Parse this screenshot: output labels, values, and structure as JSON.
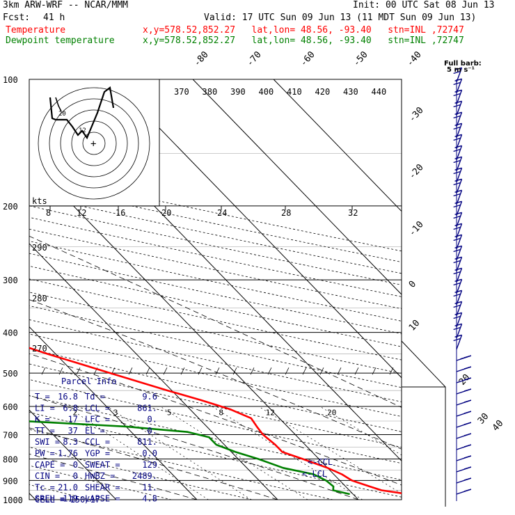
{
  "header": {
    "title": "3km ARW-WRF -- NCAR/MMM",
    "init": "Init: 00 UTC Sat 08 Jun 13",
    "fcst_label": "Fcst:",
    "fcst_value": "41 h",
    "valid": "Valid: 17 UTC Sun 09 Jun 13 (11 MDT Sun 09 Jun 13)",
    "temp_label": "Temperature",
    "dew_label": "Dewpoint temperature",
    "temp_info": "x,y=578.52,852.27   lat,lon= 48.56, -93.40   stn=INL ,72747",
    "dew_info": "x,y=578.52,852.27   lat,lon= 48.56, -93.40   stn=INL ,72747"
  },
  "colors": {
    "temperature": "#ff0000",
    "dewpoint": "#008000",
    "parcel_text": "#000080",
    "barbs": "#000080",
    "hodograph": "#000000"
  },
  "wind": {
    "title": "Full barb:",
    "unit": "5 m s⁻¹"
  },
  "hodo": {
    "kts_label": "kts",
    "speed_ticks": [
      "8",
      "12",
      "16",
      "20",
      "24",
      "28",
      "32"
    ],
    "ring_labels": [
      "12",
      "20"
    ]
  },
  "parcel": {
    "title": "Parcel Info",
    "rows": [
      {
        "l1": "T",
        "v1": "16.8",
        "l2": "Td",
        "v2": "9.6"
      },
      {
        "l1": "LI",
        "v1": "6.8",
        "l2": "LCL",
        "v2": "861."
      },
      {
        "l1": "K",
        "v1": "17",
        "l2": "LFC",
        "v2": "0."
      },
      {
        "l1": "TT",
        "v1": "37",
        "l2": "EL",
        "v2": "0."
      },
      {
        "l1": "SWI",
        "v1": "8.3",
        "l2": "CCL",
        "v2": "811."
      },
      {
        "l1": "PW",
        "v1": "1.76",
        "l2": "YGP",
        "v2": "0.0"
      },
      {
        "l1": "CAPE",
        "v1": "0",
        "l2": "SWEAT",
        "v2": "129"
      },
      {
        "l1": "CIN",
        "v1": "0",
        "l2": "HWBZ",
        "v2": "2489."
      },
      {
        "l1": "Tc",
        "v1": "21.0",
        "l2": "SHEAR",
        "v2": "11."
      },
      {
        "l1": "SREH",
        "v1": "119",
        "l2": "LAPSE",
        "v2": "4.8"
      }
    ],
    "cell": "CELL = 150/17",
    "ccl_marker": "<-CCL",
    "lcl_marker": "<-LCL"
  },
  "chart_data": {
    "type": "line",
    "subtype": "skew-T log-p sounding",
    "y_axis": "pressure (hPa), log scale, top 100 bottom 1000",
    "ylim": [
      100,
      1000
    ],
    "pressure_ticks": [
      100,
      200,
      300,
      400,
      500,
      600,
      700,
      800,
      900,
      1000
    ],
    "isotherm_labels": [
      "-80",
      "-70",
      "-60",
      "-50",
      "-40",
      "-30",
      "-20",
      "-10",
      "0",
      "10",
      "20",
      "30",
      "40"
    ],
    "theta_labels": [
      "370",
      "380",
      "390",
      "400",
      "410",
      "420",
      "430",
      "440"
    ],
    "theta_left_labels": [
      "290",
      "280",
      "270"
    ],
    "mixing_ratio_labels": [
      "2",
      "3",
      "5",
      "8",
      "12",
      "20"
    ],
    "series": [
      {
        "name": "Temperature",
        "units": "degC",
        "points": [
          [
            970,
            16.8
          ],
          [
            950,
            14.0
          ],
          [
            930,
            13.0
          ],
          [
            900,
            11.5
          ],
          [
            870,
            11.0
          ],
          [
            840,
            10.0
          ],
          [
            800,
            8.0
          ],
          [
            770,
            6.3
          ],
          [
            740,
            6.3
          ],
          [
            700,
            6.0
          ],
          [
            670,
            6.2
          ],
          [
            640,
            6.5
          ],
          [
            610,
            5.0
          ],
          [
            580,
            2.5
          ],
          [
            550,
            -0.5
          ],
          [
            500,
            -5.5
          ],
          [
            450,
            -11.0
          ],
          [
            400,
            -16.5
          ],
          [
            370,
            -21.5
          ],
          [
            350,
            -24.5
          ],
          [
            330,
            -28.0
          ],
          [
            300,
            -33.0
          ],
          [
            280,
            -37.0
          ],
          [
            260,
            -42.0
          ],
          [
            245,
            -45.5
          ],
          [
            230,
            -50.0
          ],
          [
            215,
            -53.5
          ],
          [
            205,
            -56.5
          ],
          [
            195,
            -56.5
          ],
          [
            180,
            -55.0
          ],
          [
            165,
            -54.0
          ],
          [
            150,
            -54.0
          ],
          [
            135,
            -51.0
          ],
          [
            115,
            -50.0
          ],
          [
            100,
            -52.0
          ]
        ]
      },
      {
        "name": "Dewpoint temperature",
        "units": "degC",
        "points": [
          [
            970,
            9.6
          ],
          [
            950,
            8.0
          ],
          [
            930,
            8.5
          ],
          [
            900,
            8.3
          ],
          [
            870,
            7.5
          ],
          [
            840,
            4.5
          ],
          [
            800,
            2.5
          ],
          [
            770,
            0.5
          ],
          [
            740,
            -1.0
          ],
          [
            710,
            -1.0
          ],
          [
            690,
            -3.0
          ],
          [
            670,
            -10.0
          ],
          [
            650,
            -22.0
          ],
          [
            620,
            -45.0
          ],
          [
            590,
            -60.0
          ],
          [
            560,
            -75.0
          ],
          [
            530,
            -95.0
          ],
          [
            510,
            -70.0
          ],
          [
            470,
            -50.0
          ],
          [
            430,
            -38.0
          ],
          [
            390,
            -32.0
          ],
          [
            360,
            -33.0
          ],
          [
            340,
            -38.0
          ],
          [
            300,
            -45.0
          ],
          [
            270,
            -53.0
          ],
          [
            245,
            -59.0
          ],
          [
            225,
            -66.0
          ],
          [
            215,
            -67.0
          ],
          [
            200,
            -68.0
          ],
          [
            185,
            -70.0
          ],
          [
            165,
            -74.0
          ],
          [
            145,
            -81.0
          ],
          [
            125,
            -84.0
          ],
          [
            112,
            -83.5
          ],
          [
            100,
            -82.0
          ]
        ]
      }
    ]
  }
}
